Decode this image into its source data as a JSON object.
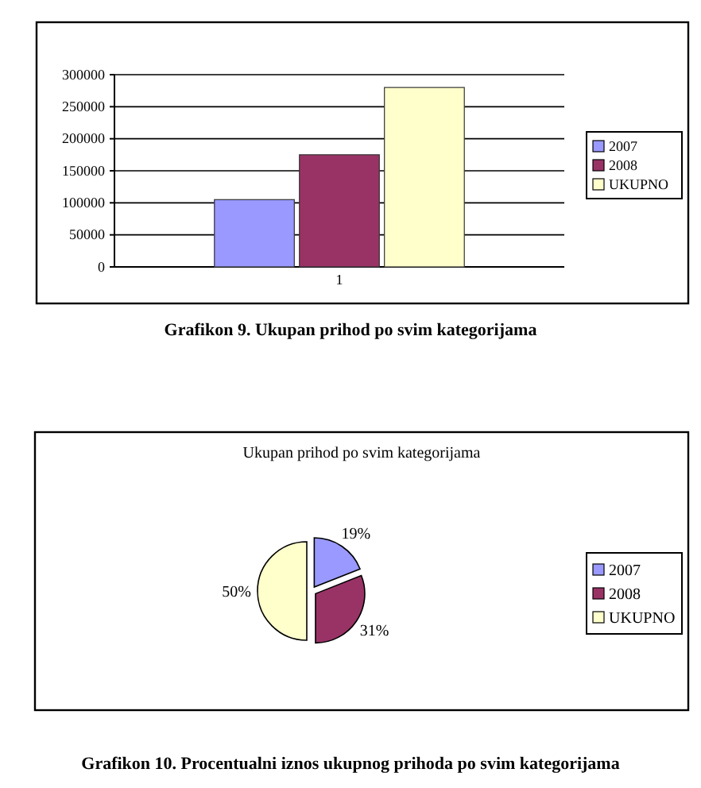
{
  "chart_data": [
    {
      "type": "bar",
      "categories": [
        "1"
      ],
      "series": [
        {
          "name": "2007",
          "color": "#9999ff",
          "values": [
            105000
          ]
        },
        {
          "name": "2008",
          "color": "#993366",
          "values": [
            175000
          ]
        },
        {
          "name": "UKUPNO",
          "color": "#ffffcc",
          "values": [
            280000
          ]
        }
      ],
      "ylim": [
        0,
        300000
      ],
      "yticks": [
        0,
        50000,
        100000,
        150000,
        200000,
        250000,
        300000
      ],
      "grid": "y",
      "legend": "right",
      "annotations": [
        "Grafikon 9. Ukupan prihod po svim kategorijama"
      ]
    },
    {
      "type": "pie",
      "title": "Ukupan prihod po svim kategorijama",
      "categories": [
        "2007",
        "2008",
        "UKUPNO"
      ],
      "values": [
        19,
        31,
        50
      ],
      "colors": [
        "#9999ff",
        "#993366",
        "#ffffcc"
      ],
      "value_labels": [
        "19%",
        "31%",
        "50%"
      ],
      "legend": "right",
      "annotations": [
        "Grafikon 10. Procentualni iznos ukupnog prihoda po svim kategorijama"
      ]
    }
  ]
}
